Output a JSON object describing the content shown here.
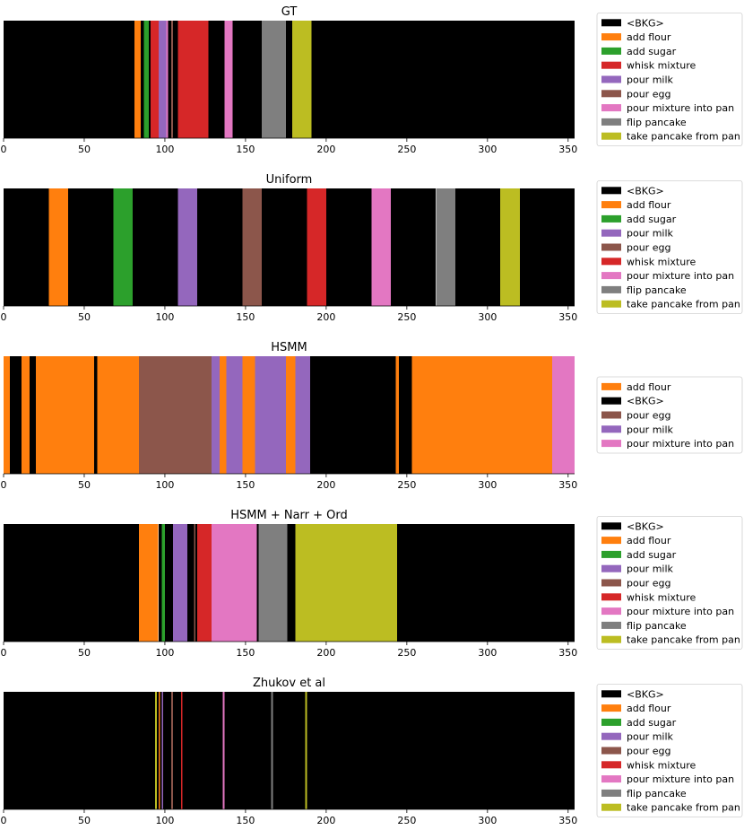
{
  "chart_data": [
    {
      "type": "bar",
      "title": "GT",
      "xlim": [
        0,
        354
      ],
      "xticks": [
        0,
        50,
        100,
        150,
        200,
        250,
        300,
        350
      ],
      "legend": [
        "<BKG>",
        "add flour",
        "add sugar",
        "whisk mixture",
        "pour milk",
        "pour egg",
        "pour mixture into pan",
        "flip pancake",
        "take pancake from pan"
      ],
      "segments": [
        {
          "label": "<BKG>",
          "start": 0,
          "end": 81
        },
        {
          "label": "add flour",
          "start": 81,
          "end": 85
        },
        {
          "label": "<BKG>",
          "start": 85,
          "end": 87
        },
        {
          "label": "add sugar",
          "start": 87,
          "end": 90
        },
        {
          "label": "<BKG>",
          "start": 90,
          "end": 91
        },
        {
          "label": "whisk mixture",
          "start": 91,
          "end": 96
        },
        {
          "label": "pour milk",
          "start": 96,
          "end": 101
        },
        {
          "label": "pour mixture into pan",
          "start": 101,
          "end": 102
        },
        {
          "label": "<BKG>",
          "start": 102,
          "end": 104
        },
        {
          "label": "pour egg",
          "start": 104,
          "end": 105
        },
        {
          "label": "<BKG>",
          "start": 105,
          "end": 108
        },
        {
          "label": "whisk mixture",
          "start": 108,
          "end": 127
        },
        {
          "label": "<BKG>",
          "start": 127,
          "end": 137
        },
        {
          "label": "pour mixture into pan",
          "start": 137,
          "end": 142
        },
        {
          "label": "<BKG>",
          "start": 142,
          "end": 160
        },
        {
          "label": "flip pancake",
          "start": 160,
          "end": 175
        },
        {
          "label": "<BKG>",
          "start": 175,
          "end": 179
        },
        {
          "label": "take pancake from pan",
          "start": 179,
          "end": 191
        },
        {
          "label": "<BKG>",
          "start": 191,
          "end": 354
        }
      ]
    },
    {
      "type": "bar",
      "title": "Uniform",
      "xlim": [
        0,
        354
      ],
      "xticks": [
        0,
        50,
        100,
        150,
        200,
        250,
        300,
        350
      ],
      "legend": [
        "<BKG>",
        "add flour",
        "add sugar",
        "pour milk",
        "pour egg",
        "whisk mixture",
        "pour mixture into pan",
        "flip pancake",
        "take pancake from pan"
      ],
      "segments": [
        {
          "label": "<BKG>",
          "start": 0,
          "end": 28
        },
        {
          "label": "add flour",
          "start": 28,
          "end": 40
        },
        {
          "label": "<BKG>",
          "start": 40,
          "end": 68
        },
        {
          "label": "add sugar",
          "start": 68,
          "end": 80
        },
        {
          "label": "<BKG>",
          "start": 80,
          "end": 108
        },
        {
          "label": "pour milk",
          "start": 108,
          "end": 120
        },
        {
          "label": "<BKG>",
          "start": 120,
          "end": 148
        },
        {
          "label": "pour egg",
          "start": 148,
          "end": 160
        },
        {
          "label": "<BKG>",
          "start": 160,
          "end": 188
        },
        {
          "label": "whisk mixture",
          "start": 188,
          "end": 200
        },
        {
          "label": "<BKG>",
          "start": 200,
          "end": 228
        },
        {
          "label": "pour mixture into pan",
          "start": 228,
          "end": 240
        },
        {
          "label": "<BKG>",
          "start": 240,
          "end": 268
        },
        {
          "label": "flip pancake",
          "start": 268,
          "end": 280
        },
        {
          "label": "<BKG>",
          "start": 280,
          "end": 308
        },
        {
          "label": "take pancake from pan",
          "start": 308,
          "end": 320
        },
        {
          "label": "<BKG>",
          "start": 320,
          "end": 354
        }
      ]
    },
    {
      "type": "bar",
      "title": "HSMM",
      "xlim": [
        0,
        354
      ],
      "xticks": [
        0,
        50,
        100,
        150,
        200,
        250,
        300,
        350
      ],
      "legend": [
        "add flour",
        "<BKG>",
        "pour egg",
        "pour milk",
        "pour mixture into pan"
      ],
      "segments": [
        {
          "label": "add flour",
          "start": 0,
          "end": 4
        },
        {
          "label": "<BKG>",
          "start": 4,
          "end": 11
        },
        {
          "label": "add flour",
          "start": 11,
          "end": 16
        },
        {
          "label": "<BKG>",
          "start": 16,
          "end": 20
        },
        {
          "label": "add flour",
          "start": 20,
          "end": 56
        },
        {
          "label": "<BKG>",
          "start": 56,
          "end": 58
        },
        {
          "label": "add flour",
          "start": 58,
          "end": 84
        },
        {
          "label": "pour egg",
          "start": 84,
          "end": 129
        },
        {
          "label": "pour milk",
          "start": 129,
          "end": 134
        },
        {
          "label": "add flour",
          "start": 134,
          "end": 138
        },
        {
          "label": "pour milk",
          "start": 138,
          "end": 148
        },
        {
          "label": "add flour",
          "start": 148,
          "end": 156
        },
        {
          "label": "pour milk",
          "start": 156,
          "end": 175
        },
        {
          "label": "add flour",
          "start": 175,
          "end": 181
        },
        {
          "label": "pour milk",
          "start": 181,
          "end": 190
        },
        {
          "label": "<BKG>",
          "start": 190,
          "end": 243
        },
        {
          "label": "add flour",
          "start": 243,
          "end": 245
        },
        {
          "label": "<BKG>",
          "start": 245,
          "end": 253
        },
        {
          "label": "add flour",
          "start": 253,
          "end": 340
        },
        {
          "label": "pour mixture into pan",
          "start": 340,
          "end": 354
        }
      ]
    },
    {
      "type": "bar",
      "title": "HSMM + Narr + Ord",
      "xlim": [
        0,
        354
      ],
      "xticks": [
        0,
        50,
        100,
        150,
        200,
        250,
        300,
        350
      ],
      "legend": [
        "<BKG>",
        "add flour",
        "add sugar",
        "pour milk",
        "pour egg",
        "whisk mixture",
        "pour mixture into pan",
        "flip pancake",
        "take pancake from pan"
      ],
      "segments": [
        {
          "label": "<BKG>",
          "start": 0,
          "end": 84
        },
        {
          "label": "add flour",
          "start": 84,
          "end": 96
        },
        {
          "label": "<BKG>",
          "start": 96,
          "end": 98
        },
        {
          "label": "add sugar",
          "start": 98,
          "end": 100
        },
        {
          "label": "<BKG>",
          "start": 100,
          "end": 105
        },
        {
          "label": "pour milk",
          "start": 105,
          "end": 114
        },
        {
          "label": "<BKG>",
          "start": 114,
          "end": 118
        },
        {
          "label": "pour egg",
          "start": 118,
          "end": 119
        },
        {
          "label": "<BKG>",
          "start": 119,
          "end": 120
        },
        {
          "label": "whisk mixture",
          "start": 120,
          "end": 129
        },
        {
          "label": "pour mixture into pan",
          "start": 129,
          "end": 157
        },
        {
          "label": "<BKG>",
          "start": 157,
          "end": 158
        },
        {
          "label": "flip pancake",
          "start": 158,
          "end": 176
        },
        {
          "label": "<BKG>",
          "start": 176,
          "end": 181
        },
        {
          "label": "take pancake from pan",
          "start": 181,
          "end": 244
        },
        {
          "label": "<BKG>",
          "start": 244,
          "end": 354
        }
      ]
    },
    {
      "type": "bar",
      "title": "Zhukov et al",
      "xlim": [
        0,
        354
      ],
      "xticks": [
        0,
        50,
        100,
        150,
        200,
        250,
        300,
        350
      ],
      "legend": [
        "<BKG>",
        "add flour",
        "add sugar",
        "pour milk",
        "pour egg",
        "whisk mixture",
        "pour mixture into pan",
        "flip pancake",
        "take pancake from pan"
      ],
      "segments": [
        {
          "label": "<BKG>",
          "start": 0,
          "end": 94
        },
        {
          "label": "take pancake from pan",
          "start": 94,
          "end": 95
        },
        {
          "label": "<BKG>",
          "start": 95,
          "end": 96
        },
        {
          "label": "add flour",
          "start": 96,
          "end": 97
        },
        {
          "label": "<BKG>",
          "start": 97,
          "end": 98
        },
        {
          "label": "pour milk",
          "start": 98,
          "end": 99
        },
        {
          "label": "<BKG>",
          "start": 99,
          "end": 104
        },
        {
          "label": "pour egg",
          "start": 104,
          "end": 105
        },
        {
          "label": "<BKG>",
          "start": 105,
          "end": 110
        },
        {
          "label": "whisk mixture",
          "start": 110,
          "end": 111
        },
        {
          "label": "<BKG>",
          "start": 111,
          "end": 136
        },
        {
          "label": "pour mixture into pan",
          "start": 136,
          "end": 137
        },
        {
          "label": "<BKG>",
          "start": 137,
          "end": 166
        },
        {
          "label": "flip pancake",
          "start": 166,
          "end": 167
        },
        {
          "label": "<BKG>",
          "start": 167,
          "end": 187
        },
        {
          "label": "take pancake from pan",
          "start": 187,
          "end": 188
        },
        {
          "label": "<BKG>",
          "start": 188,
          "end": 354
        }
      ]
    }
  ],
  "colors": {
    "<BKG>": "#000000",
    "add flour": "#ff7f0e",
    "add sugar": "#2ca02c",
    "whisk mixture": "#d62728",
    "pour milk": "#9467bd",
    "pour egg": "#8c564b",
    "pour mixture into pan": "#e377c2",
    "flip pancake": "#7f7f7f",
    "take pancake from pan": "#bcbd22"
  }
}
